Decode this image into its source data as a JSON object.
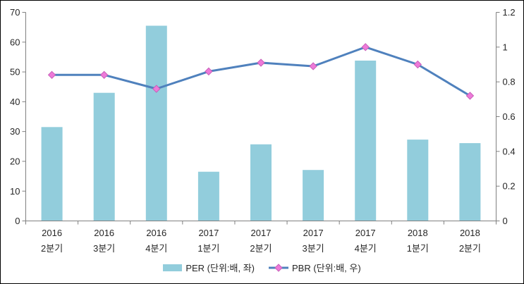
{
  "chart_data": {
    "type": "bar+line combo",
    "categories": [
      {
        "line1": "2016",
        "line2": "2분기"
      },
      {
        "line1": "2016",
        "line2": "3분기"
      },
      {
        "line1": "2016",
        "line2": "4분기"
      },
      {
        "line1": "2017",
        "line2": "1분기"
      },
      {
        "line1": "2017",
        "line2": "2분기"
      },
      {
        "line1": "2017",
        "line2": "3분기"
      },
      {
        "line1": "2017",
        "line2": "4분기"
      },
      {
        "line1": "2018",
        "line2": "1분기"
      },
      {
        "line1": "2018",
        "line2": "2분기"
      }
    ],
    "series": [
      {
        "name": "PER (단위:배, 좌)",
        "type": "bar",
        "axis": "left",
        "values": [
          31.5,
          43,
          65.5,
          16.5,
          25.7,
          17.1,
          53.8,
          27.3,
          26.1
        ]
      },
      {
        "name": "PBR (단위:배, 우)",
        "type": "line",
        "axis": "right",
        "values": [
          0.84,
          0.84,
          0.76,
          0.86,
          0.91,
          0.89,
          1.0,
          0.9,
          0.72
        ]
      }
    ],
    "left_axis": {
      "min": 0,
      "max": 70,
      "step": 10
    },
    "right_axis": {
      "min": 0,
      "max": 1.2,
      "step": 0.2
    },
    "grid": false,
    "legend_position": "bottom"
  },
  "legend": {
    "per_label": "PER (단위:배, 좌)",
    "pbr_label": "PBR (단위:배, 우)"
  },
  "colors": {
    "bar": "#92CDDC",
    "line": "#4F81BD",
    "marker_fill": "#EE7AD9",
    "marker_stroke": "#C75FB8",
    "axis": "#808080",
    "text": "#262626",
    "border": "#000000",
    "background": "#FFFFFF"
  }
}
